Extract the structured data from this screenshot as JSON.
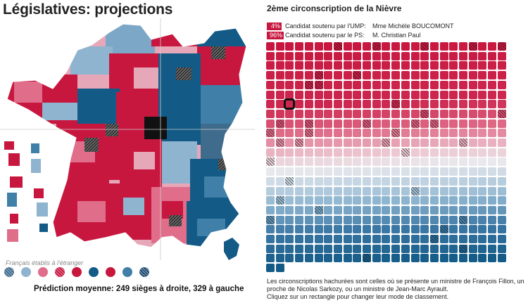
{
  "page": {
    "title": "Législatives: projections"
  },
  "map": {
    "overseas_label": "Français établis à l'étranger"
  },
  "legend": {
    "items": [
      {
        "name": "legend-dot-1",
        "color": "#3f6b8c",
        "hatched": true
      },
      {
        "name": "legend-dot-2",
        "color": "#8fb4cf",
        "hatched": false
      },
      {
        "name": "legend-dot-3",
        "color": "#e06e8a",
        "hatched": false
      },
      {
        "name": "legend-dot-4",
        "color": "#c8173f",
        "hatched": true
      },
      {
        "name": "legend-dot-5",
        "color": "#c8173f",
        "hatched": false
      },
      {
        "name": "legend-dot-6",
        "color": "#135a86",
        "hatched": false
      },
      {
        "name": "legend-dot-7",
        "color": "#c8173f",
        "hatched": false
      },
      {
        "name": "legend-dot-8",
        "color": "#3f7fa8",
        "hatched": false
      },
      {
        "name": "legend-dot-9",
        "color": "#1c4a70",
        "hatched": true
      }
    ]
  },
  "prediction": "Prédiction moyenne: 249 sièges à droite, 329 à gauche",
  "circonscription": {
    "title": "2ème circonscription de la Nièvre",
    "candidates": [
      {
        "pct": "4%",
        "label": "Candidat soutenu par l'UMP:",
        "name": "Mme Michèle BOUCOMONT"
      },
      {
        "pct": "96%",
        "label": "Candidat soutenu par le PS:",
        "name": "M. Christian Paul"
      }
    ]
  },
  "colors": {
    "red": "#c8173f",
    "blue": "#135a86",
    "selected_border": "#111111"
  },
  "grid": {
    "columns": 25,
    "total": 577,
    "selected_index": 152
  },
  "footer": {
    "line1": "Les circonscriptions hachurées sont celles où se présente un ministre de François Fillon, un",
    "line2": "proche de Nicolas Sarkozy, ou un ministre de Jean-Marc Ayrault.",
    "line3": "Cliquez sur un rectangle pour changer leur mode de classement."
  }
}
